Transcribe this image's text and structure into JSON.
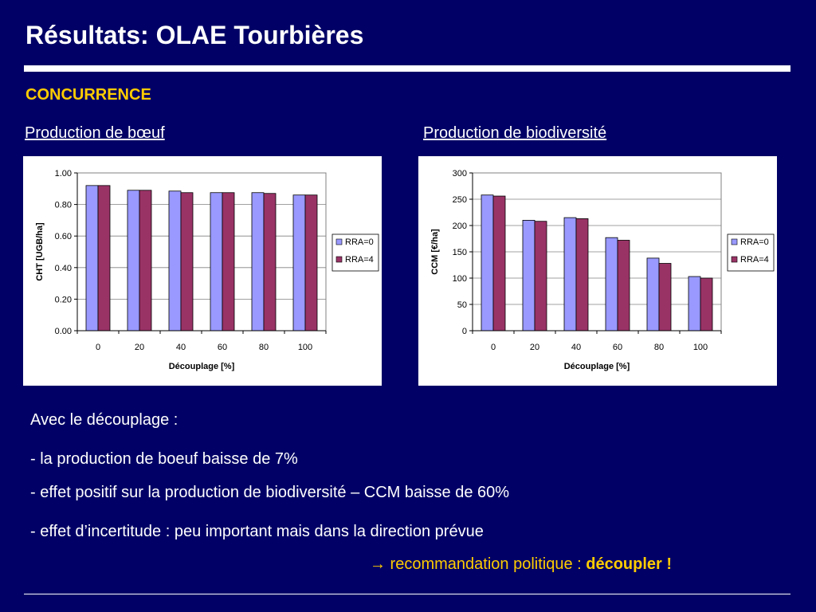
{
  "slide": {
    "title": "Résultats: OLAE Tourbières",
    "section": "CONCURRENCE",
    "left_chart_title": "Production de bœuf",
    "right_chart_title": "Production de biodiversité",
    "bullets": {
      "intro": "Avec le découplage :",
      "b1": "- la production de boeuf baisse de 7%",
      "b2": "- effet positif sur la production de biodiversité – CCM baisse de 60%",
      "b3": "- effet d’incertitude : peu important mais dans la direction prévue"
    },
    "reco_arrow": "→",
    "reco_text": " recommandation politique : ",
    "reco_emphasis": "découpler !"
  },
  "colors": {
    "background": "#000066",
    "accent": "#ffcc00",
    "rra0": "#9999ff",
    "rra4": "#993366"
  },
  "chart_data": [
    {
      "type": "bar",
      "categories": [
        "0",
        "20",
        "40",
        "60",
        "80",
        "100"
      ],
      "series": [
        {
          "name": "RRA=0",
          "values": [
            0.92,
            0.89,
            0.885,
            0.875,
            0.875,
            0.86
          ]
        },
        {
          "name": "RRA=4",
          "values": [
            0.92,
            0.89,
            0.875,
            0.875,
            0.87,
            0.86
          ]
        }
      ],
      "xlabel": "Découplage [%]",
      "ylabel": "CHT [UGB/ha]",
      "ylim": [
        0,
        1
      ],
      "yticks": [
        "0.00",
        "0.20",
        "0.40",
        "0.60",
        "0.80",
        "1.00"
      ],
      "grid": true,
      "legend": "right"
    },
    {
      "type": "bar",
      "categories": [
        "0",
        "20",
        "40",
        "60",
        "80",
        "100"
      ],
      "series": [
        {
          "name": "RRA=0",
          "values": [
            258,
            210,
            215,
            177,
            138,
            103
          ]
        },
        {
          "name": "RRA=4",
          "values": [
            256,
            208,
            213,
            172,
            128,
            100
          ]
        }
      ],
      "xlabel": "Découplage [%]",
      "ylabel": "CCM [€/ha]",
      "ylim": [
        0,
        300
      ],
      "yticks": [
        "0",
        "50",
        "100",
        "150",
        "200",
        "250",
        "300"
      ],
      "grid": true,
      "legend": "right"
    }
  ]
}
